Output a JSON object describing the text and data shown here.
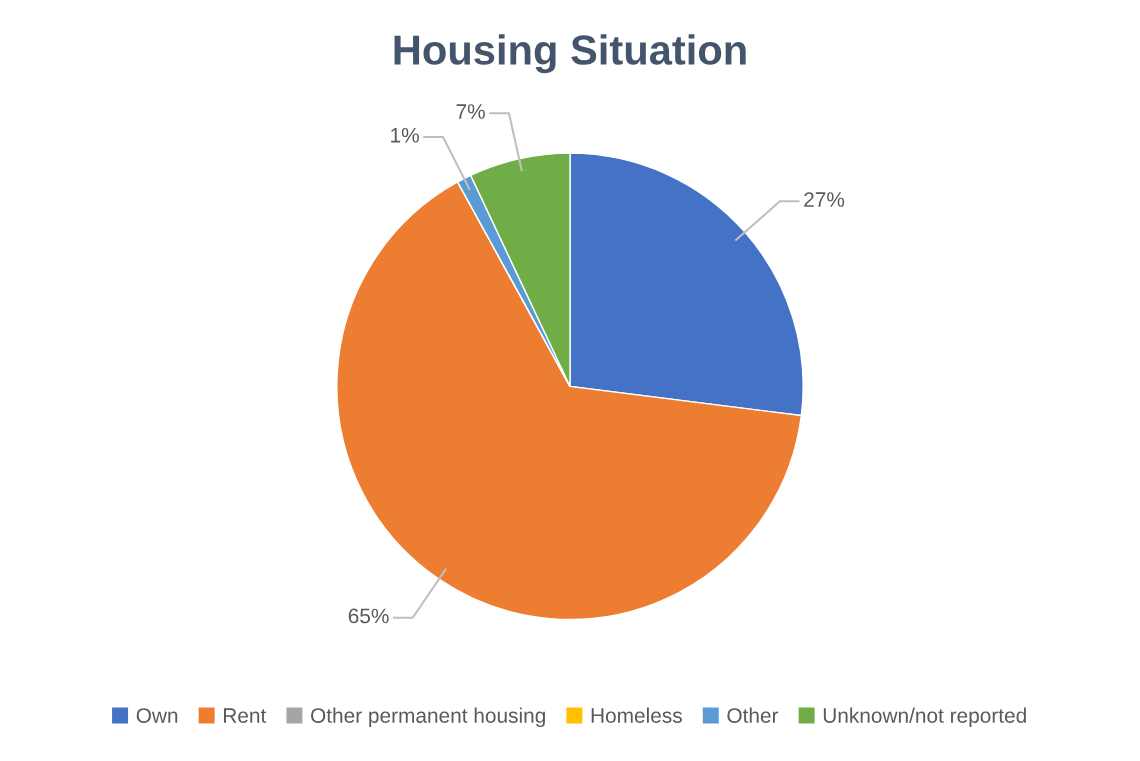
{
  "chart_data": {
    "type": "pie",
    "title": "Housing Situation",
    "categories": [
      "Own",
      "Rent",
      "Other permanent housing",
      "Homeless",
      "Other",
      "Unknown/not reported"
    ],
    "values": [
      27,
      65,
      0,
      0,
      1,
      7
    ],
    "colors": [
      "#4472c4",
      "#ed7d31",
      "#a5a5a5",
      "#ffc000",
      "#5b9bd5",
      "#70ad47"
    ],
    "value_labels": [
      "27%",
      "65%",
      null,
      null,
      "1%",
      "7%"
    ],
    "legend": "bottom"
  }
}
